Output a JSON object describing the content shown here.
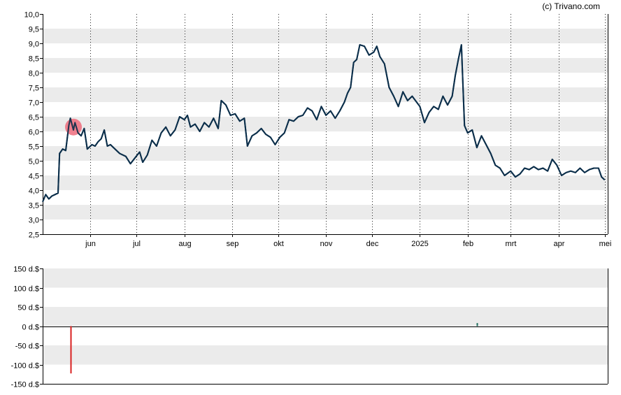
{
  "credit": "(c) Trivano.com",
  "colors": {
    "band": "#ebebeb",
    "price_line": "#0b2f4a",
    "marker_fill": "#ef6c7c",
    "volume_negative": "#d92020",
    "volume_positive": "#1f6e5e",
    "axis": "#000000"
  },
  "chart_data": [
    {
      "type": "line",
      "title": "",
      "xlabel": "",
      "ylabel": "",
      "ylim": [
        2.5,
        10.0
      ],
      "y_ticks": [
        "10,0",
        "9,5",
        "9,0",
        "8,5",
        "8,0",
        "7,5",
        "7,0",
        "6,5",
        "6,0",
        "5,5",
        "5,0",
        "4,5",
        "4,0",
        "3,5",
        "3,0",
        "2,5"
      ],
      "y_tick_values": [
        10.0,
        9.5,
        9.0,
        8.5,
        8.0,
        7.5,
        7.0,
        6.5,
        6.0,
        5.5,
        5.0,
        4.5,
        4.0,
        3.5,
        3.0,
        2.5
      ],
      "x_ticks": [
        "jun",
        "jul",
        "aug",
        "sep",
        "okt",
        "nov",
        "dec",
        "2025",
        "feb",
        "mrt",
        "apr",
        "mei"
      ],
      "x_range_months": [
        "2024-05",
        "2025-05"
      ],
      "grid": "alternating horizontal bands, dotted vertical month lines",
      "series": [
        {
          "points": [
            [
              "2024-05-01",
              3.6
            ],
            [
              "2024-05-03",
              3.85
            ],
            [
              "2024-05-05",
              3.7
            ],
            [
              "2024-05-07",
              3.8
            ],
            [
              "2024-05-09",
              3.85
            ],
            [
              "2024-05-11",
              3.9
            ],
            [
              "2024-05-12",
              5.25
            ],
            [
              "2024-05-14",
              5.4
            ],
            [
              "2024-05-16",
              5.35
            ],
            [
              "2024-05-18",
              6.2
            ],
            [
              "2024-05-19",
              6.45
            ],
            [
              "2024-05-21",
              6.05
            ],
            [
              "2024-05-22",
              6.3
            ],
            [
              "2024-05-24",
              5.95
            ],
            [
              "2024-05-26",
              5.85
            ],
            [
              "2024-05-28",
              6.1
            ],
            [
              "2024-05-30",
              5.4
            ],
            [
              "2024-06-02",
              5.55
            ],
            [
              "2024-06-04",
              5.5
            ],
            [
              "2024-06-06",
              5.65
            ],
            [
              "2024-06-08",
              5.75
            ],
            [
              "2024-06-10",
              6.05
            ],
            [
              "2024-06-12",
              5.5
            ],
            [
              "2024-06-14",
              5.55
            ],
            [
              "2024-06-16",
              5.45
            ],
            [
              "2024-06-20",
              5.25
            ],
            [
              "2024-06-24",
              5.15
            ],
            [
              "2024-06-27",
              4.9
            ],
            [
              "2024-06-30",
              5.1
            ],
            [
              "2024-07-03",
              5.3
            ],
            [
              "2024-07-05",
              4.95
            ],
            [
              "2024-07-08",
              5.2
            ],
            [
              "2024-07-11",
              5.7
            ],
            [
              "2024-07-14",
              5.5
            ],
            [
              "2024-07-17",
              5.95
            ],
            [
              "2024-07-20",
              6.15
            ],
            [
              "2024-07-23",
              5.85
            ],
            [
              "2024-07-26",
              6.05
            ],
            [
              "2024-07-29",
              6.5
            ],
            [
              "2024-08-01",
              6.4
            ],
            [
              "2024-08-03",
              6.55
            ],
            [
              "2024-08-05",
              6.15
            ],
            [
              "2024-08-08",
              6.25
            ],
            [
              "2024-08-11",
              6.0
            ],
            [
              "2024-08-14",
              6.3
            ],
            [
              "2024-08-17",
              6.15
            ],
            [
              "2024-08-20",
              6.45
            ],
            [
              "2024-08-23",
              6.1
            ],
            [
              "2024-08-25",
              7.05
            ],
            [
              "2024-08-28",
              6.9
            ],
            [
              "2024-08-31",
              6.55
            ],
            [
              "2024-09-03",
              6.6
            ],
            [
              "2024-09-06",
              6.35
            ],
            [
              "2024-09-09",
              6.45
            ],
            [
              "2024-09-11",
              5.5
            ],
            [
              "2024-09-14",
              5.85
            ],
            [
              "2024-09-17",
              5.95
            ],
            [
              "2024-09-20",
              6.1
            ],
            [
              "2024-09-23",
              5.9
            ],
            [
              "2024-09-26",
              5.8
            ],
            [
              "2024-09-29",
              5.55
            ],
            [
              "2024-10-02",
              5.8
            ],
            [
              "2024-10-05",
              5.95
            ],
            [
              "2024-10-08",
              6.4
            ],
            [
              "2024-10-11",
              6.35
            ],
            [
              "2024-10-14",
              6.5
            ],
            [
              "2024-10-17",
              6.55
            ],
            [
              "2024-10-20",
              6.8
            ],
            [
              "2024-10-23",
              6.7
            ],
            [
              "2024-10-26",
              6.4
            ],
            [
              "2024-10-29",
              6.85
            ],
            [
              "2024-11-01",
              6.55
            ],
            [
              "2024-11-04",
              6.7
            ],
            [
              "2024-11-07",
              6.45
            ],
            [
              "2024-11-10",
              6.7
            ],
            [
              "2024-11-13",
              7.0
            ],
            [
              "2024-11-15",
              7.3
            ],
            [
              "2024-11-17",
              7.5
            ],
            [
              "2024-11-19",
              8.35
            ],
            [
              "2024-11-21",
              8.45
            ],
            [
              "2024-11-23",
              8.95
            ],
            [
              "2024-11-26",
              8.9
            ],
            [
              "2024-11-29",
              8.6
            ],
            [
              "2024-12-02",
              8.7
            ],
            [
              "2024-12-04",
              8.9
            ],
            [
              "2024-12-06",
              8.55
            ],
            [
              "2024-12-09",
              8.3
            ],
            [
              "2024-12-12",
              7.5
            ],
            [
              "2024-12-15",
              7.2
            ],
            [
              "2024-12-18",
              6.85
            ],
            [
              "2024-12-21",
              7.35
            ],
            [
              "2024-12-24",
              7.05
            ],
            [
              "2024-12-27",
              7.2
            ],
            [
              "2025-01-01",
              6.85
            ],
            [
              "2025-01-04",
              6.3
            ],
            [
              "2025-01-07",
              6.65
            ],
            [
              "2025-01-10",
              6.85
            ],
            [
              "2025-01-13",
              6.75
            ],
            [
              "2025-01-16",
              7.2
            ],
            [
              "2025-01-19",
              6.9
            ],
            [
              "2025-01-22",
              7.2
            ],
            [
              "2025-01-24",
              7.9
            ],
            [
              "2025-01-26",
              8.45
            ],
            [
              "2025-01-28",
              8.95
            ],
            [
              "2025-01-30",
              6.2
            ],
            [
              "2025-02-01",
              5.95
            ],
            [
              "2025-02-04",
              6.05
            ],
            [
              "2025-02-07",
              5.45
            ],
            [
              "2025-02-10",
              5.85
            ],
            [
              "2025-02-13",
              5.55
            ],
            [
              "2025-02-16",
              5.25
            ],
            [
              "2025-02-19",
              4.85
            ],
            [
              "2025-02-22",
              4.75
            ],
            [
              "2025-02-25",
              4.5
            ],
            [
              "2025-03-01",
              4.65
            ],
            [
              "2025-03-04",
              4.45
            ],
            [
              "2025-03-07",
              4.55
            ],
            [
              "2025-03-10",
              4.75
            ],
            [
              "2025-03-13",
              4.7
            ],
            [
              "2025-03-16",
              4.8
            ],
            [
              "2025-03-19",
              4.7
            ],
            [
              "2025-03-22",
              4.75
            ],
            [
              "2025-03-25",
              4.65
            ],
            [
              "2025-03-28",
              5.05
            ],
            [
              "2025-03-31",
              4.85
            ],
            [
              "2025-04-03",
              4.5
            ],
            [
              "2025-04-06",
              4.6
            ],
            [
              "2025-04-09",
              4.65
            ],
            [
              "2025-04-12",
              4.6
            ],
            [
              "2025-04-15",
              4.75
            ],
            [
              "2025-04-18",
              4.6
            ],
            [
              "2025-04-21",
              4.7
            ],
            [
              "2025-04-24",
              4.75
            ],
            [
              "2025-04-27",
              4.75
            ],
            [
              "2025-04-29",
              4.45
            ],
            [
              "2025-05-01",
              4.35
            ]
          ]
        }
      ],
      "markers": [
        {
          "x": "2024-05-21",
          "y": 6.15,
          "kind": "circle"
        }
      ]
    },
    {
      "type": "bar",
      "title": "",
      "xlabel": "",
      "ylabel": "",
      "ylim": [
        -150,
        150
      ],
      "y_ticks": [
        "150 d.$",
        "100 d.$",
        "50 d.$",
        "0 d.$",
        "-50 d.$",
        "-100 d.$",
        "-150 d.$"
      ],
      "y_tick_values": [
        150,
        100,
        50,
        0,
        -50,
        -100,
        -150
      ],
      "grid": "alternating horizontal bands",
      "bars": [
        {
          "x": "2024-05-19",
          "value": -123,
          "sign": "negative"
        },
        {
          "x": "2025-02-07",
          "value": 8,
          "sign": "positive"
        }
      ]
    }
  ]
}
